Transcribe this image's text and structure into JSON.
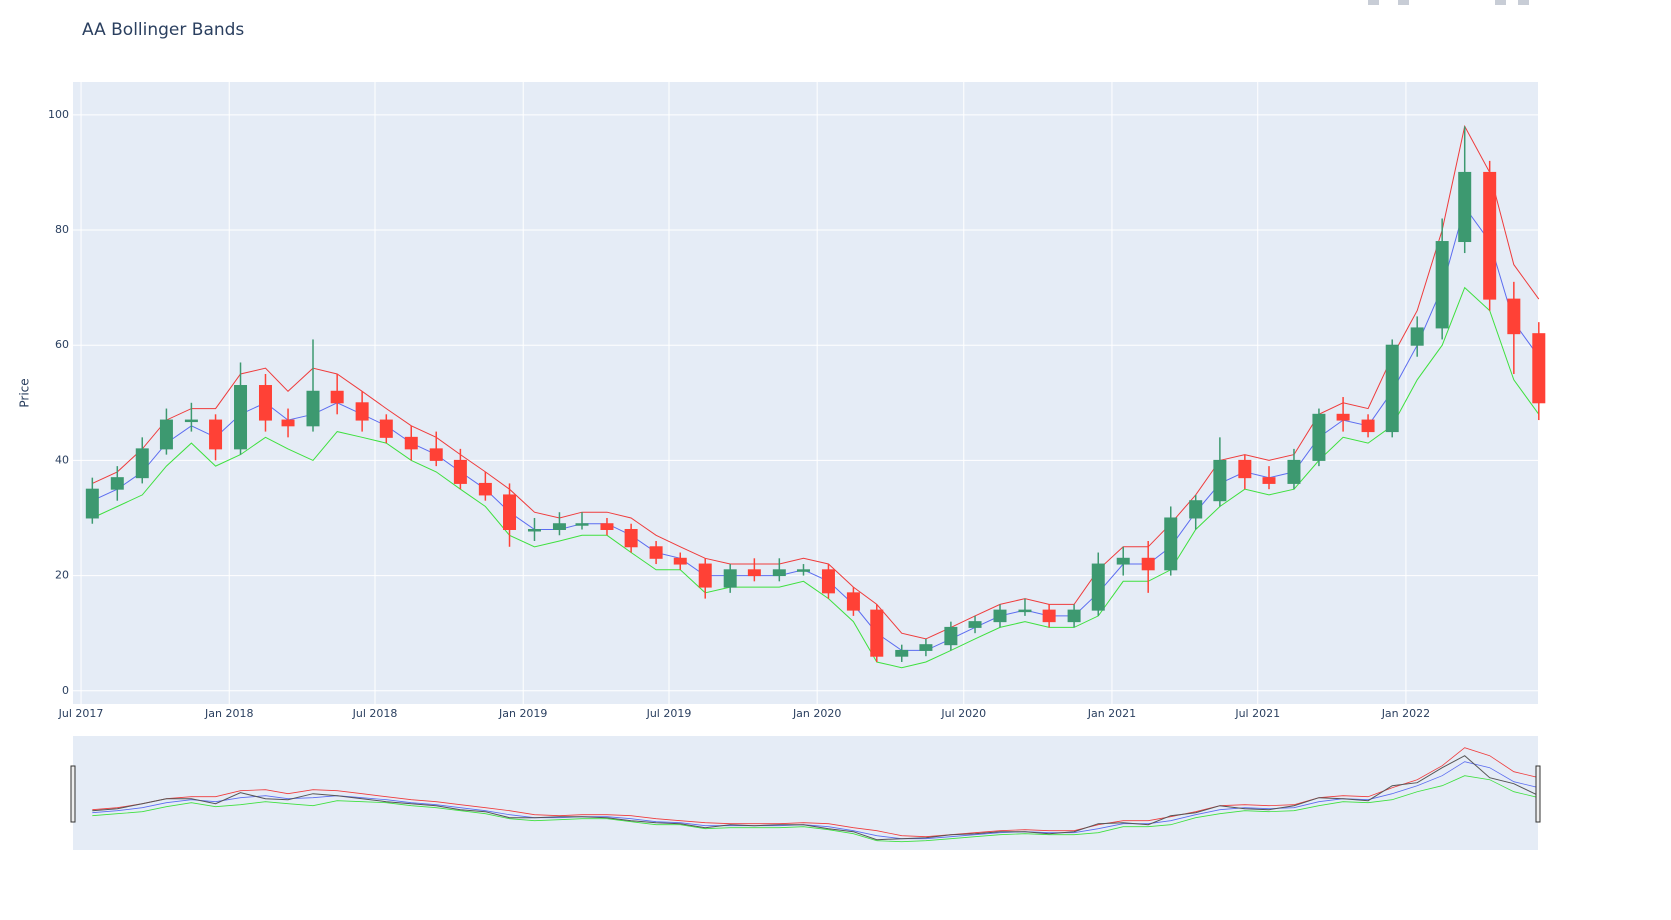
{
  "chart_data": {
    "type": "candlestick",
    "title": "AA Bollinger Bands",
    "ylabel": "Price",
    "x": [
      "2017-07",
      "2017-08",
      "2017-09",
      "2017-10",
      "2017-11",
      "2017-12",
      "2018-01",
      "2018-02",
      "2018-03",
      "2018-04",
      "2018-05",
      "2018-06",
      "2018-07",
      "2018-08",
      "2018-09",
      "2018-10",
      "2018-11",
      "2018-12",
      "2019-01",
      "2019-02",
      "2019-03",
      "2019-04",
      "2019-05",
      "2019-06",
      "2019-07",
      "2019-08",
      "2019-09",
      "2019-10",
      "2019-11",
      "2019-12",
      "2020-01",
      "2020-02",
      "2020-03",
      "2020-04",
      "2020-05",
      "2020-06",
      "2020-07",
      "2020-08",
      "2020-09",
      "2020-10",
      "2020-11",
      "2020-12",
      "2021-01",
      "2021-02",
      "2021-03",
      "2021-04",
      "2021-05",
      "2021-06",
      "2021-07",
      "2021-08",
      "2021-09",
      "2021-10",
      "2021-11",
      "2021-12",
      "2022-01",
      "2022-02",
      "2022-03",
      "2022-04",
      "2022-05",
      "2022-06"
    ],
    "open": [
      30,
      35,
      37,
      42,
      47,
      47,
      42,
      53,
      47,
      46,
      52,
      50,
      47,
      44,
      42,
      40,
      36,
      34,
      28,
      28,
      29,
      29,
      28,
      25,
      23,
      22,
      18,
      21,
      20,
      21,
      21,
      17,
      14,
      6,
      7,
      8,
      11,
      12,
      14,
      14,
      12,
      14,
      22,
      23,
      21,
      30,
      33,
      40,
      37,
      36,
      40,
      48,
      47,
      45,
      60,
      63,
      78,
      90,
      68,
      62
    ],
    "high": [
      37,
      39,
      44,
      49,
      50,
      48,
      57,
      55,
      49,
      61,
      55,
      52,
      48,
      46,
      45,
      42,
      38,
      36,
      30,
      31,
      31,
      30,
      29,
      26,
      24,
      23,
      22,
      23,
      23,
      22,
      22,
      18,
      15,
      8,
      9,
      12,
      13,
      15,
      16,
      15,
      15,
      24,
      25,
      26,
      32,
      34,
      44,
      41,
      39,
      42,
      49,
      51,
      48,
      61,
      65,
      82,
      98,
      92,
      71,
      64
    ],
    "low": [
      29,
      33,
      36,
      41,
      45,
      40,
      41,
      45,
      44,
      45,
      48,
      45,
      43,
      40,
      39,
      35,
      33,
      25,
      26,
      27,
      28,
      27,
      24,
      22,
      21,
      16,
      17,
      19,
      19,
      20,
      16,
      13,
      5,
      5,
      6,
      7,
      10,
      11,
      13,
      11,
      11,
      13,
      20,
      17,
      20,
      28,
      32,
      35,
      35,
      35,
      39,
      45,
      44,
      44,
      58,
      61,
      76,
      66,
      55,
      47
    ],
    "close": [
      35,
      37,
      42,
      47,
      47,
      42,
      53,
      47,
      46,
      52,
      50,
      47,
      44,
      42,
      40,
      36,
      34,
      28,
      28,
      29,
      29,
      28,
      25,
      23,
      22,
      18,
      21,
      20,
      21,
      21,
      17,
      14,
      6,
      7,
      8,
      11,
      12,
      14,
      14,
      12,
      14,
      22,
      23,
      21,
      30,
      33,
      40,
      37,
      36,
      40,
      48,
      47,
      45,
      60,
      63,
      78,
      90,
      68,
      62,
      50
    ],
    "increasing_color": "#3d9970",
    "decreasing_color": "#ff4136",
    "bands": [
      {
        "color": "#ef3b3b",
        "values": [
          36,
          38,
          42,
          47,
          49,
          49,
          55,
          56,
          52,
          56,
          55,
          52,
          49,
          46,
          44,
          41,
          38,
          35,
          31,
          30,
          31,
          31,
          30,
          27,
          25,
          23,
          22,
          22,
          22,
          23,
          22,
          18,
          15,
          10,
          9,
          11,
          13,
          15,
          16,
          15,
          15,
          21,
          25,
          25,
          29,
          34,
          40,
          41,
          40,
          41,
          48,
          50,
          49,
          58,
          66,
          80,
          98,
          90,
          74,
          68
        ]
      },
      {
        "color": "#5b6cf0",
        "values": [
          33,
          35,
          38,
          43,
          46,
          44,
          48,
          50,
          47,
          48,
          50,
          48,
          46,
          43,
          41,
          38,
          35,
          31,
          28,
          28,
          29,
          29,
          27,
          24,
          23,
          20,
          20,
          20,
          20,
          21,
          19,
          15,
          10,
          7,
          7,
          9,
          11,
          13,
          14,
          13,
          13,
          17,
          22,
          22,
          25,
          31,
          36,
          38,
          37,
          38,
          44,
          47,
          46,
          52,
          60,
          70,
          84,
          78,
          64,
          58
        ]
      },
      {
        "color": "#3ee03e",
        "values": [
          30,
          32,
          34,
          39,
          43,
          39,
          41,
          44,
          42,
          40,
          45,
          44,
          43,
          40,
          38,
          35,
          32,
          27,
          25,
          26,
          27,
          27,
          24,
          21,
          21,
          17,
          18,
          18,
          18,
          19,
          16,
          12,
          5,
          4,
          5,
          7,
          9,
          11,
          12,
          11,
          11,
          13,
          19,
          19,
          21,
          28,
          32,
          35,
          34,
          35,
          40,
          44,
          43,
          46,
          54,
          60,
          70,
          66,
          54,
          48
        ]
      }
    ],
    "xlim": [
      "2017-06-21",
      "2022-06-14"
    ],
    "xticks": [
      {
        "value": "2017-07",
        "label": "Jul 2017"
      },
      {
        "value": "2018-01",
        "label": "Jan 2018"
      },
      {
        "value": "2018-07",
        "label": "Jul 2018"
      },
      {
        "value": "2019-01",
        "label": "Jan 2019"
      },
      {
        "value": "2019-07",
        "label": "Jul 2019"
      },
      {
        "value": "2020-01",
        "label": "Jan 2020"
      },
      {
        "value": "2020-07",
        "label": "Jul 2020"
      },
      {
        "value": "2021-01",
        "label": "Jan 2021"
      },
      {
        "value": "2021-07",
        "label": "Jul 2021"
      },
      {
        "value": "2022-01",
        "label": "Jan 2022"
      }
    ],
    "ylim": [
      -2.3,
      105.7
    ],
    "yticks": [
      0,
      20,
      40,
      60,
      80,
      100
    ],
    "grid": true,
    "rangeslider": true
  }
}
